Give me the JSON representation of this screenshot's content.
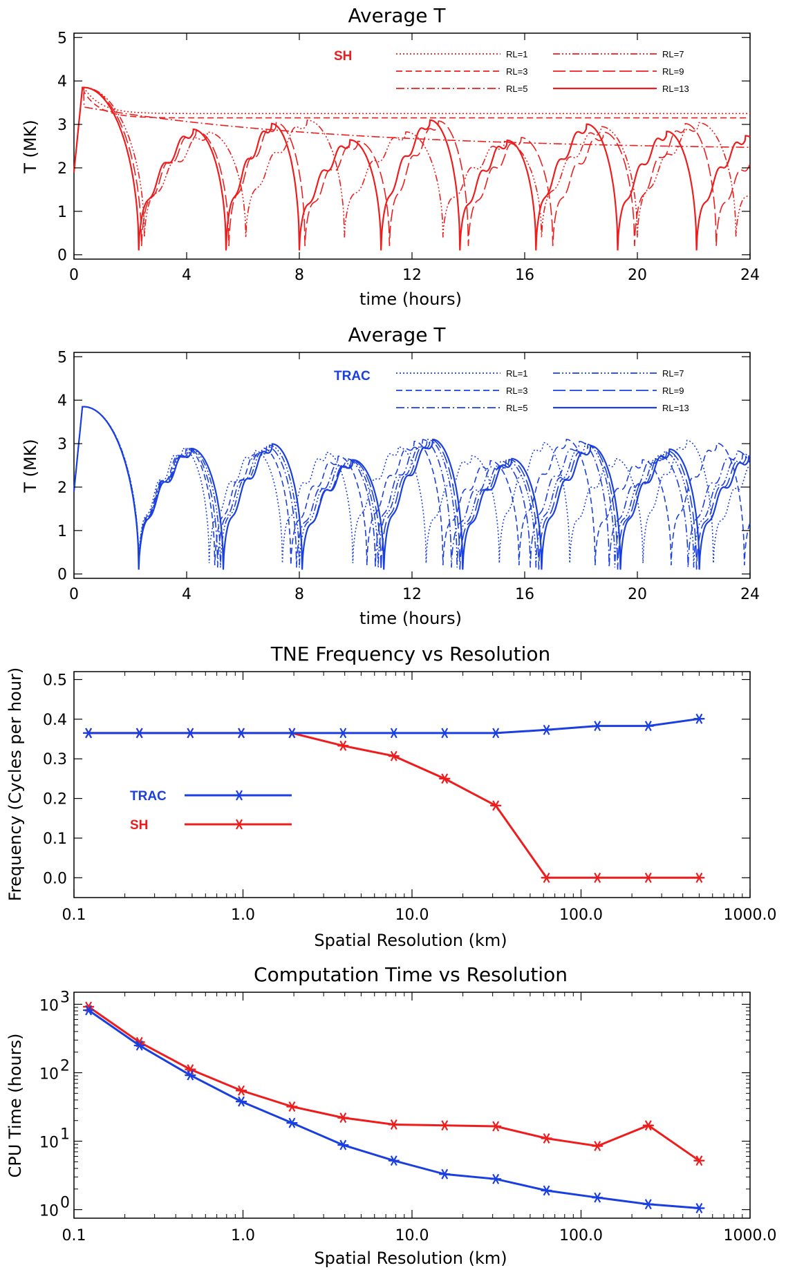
{
  "chart_data": [
    {
      "type": "line",
      "title": "Average T",
      "xlabel": "time (hours)",
      "ylabel": "T (MK)",
      "xlim": [
        0,
        24
      ],
      "ylim": [
        -0.1,
        5.1
      ],
      "xticks": [
        "0",
        "4",
        "8",
        "12",
        "16",
        "20",
        "24"
      ],
      "yticks": [
        "0",
        "1",
        "2",
        "3",
        "4",
        "5"
      ],
      "legend_title": "SH",
      "color": "#ee1c1c",
      "series": [
        {
          "name": "RL=1",
          "style": "dotted",
          "shape": "flat",
          "plateau": 3.25
        },
        {
          "name": "RL=3",
          "style": "dashed",
          "shape": "flat",
          "plateau": 3.15
        },
        {
          "name": "RL=5",
          "style": "dashdot",
          "shape": "decay",
          "start": 3.4,
          "end": 2.4
        },
        {
          "name": "RL=7",
          "style": "dashdotdotdot",
          "shape": "cycles",
          "minima": [
            2.5,
            6.1,
            9.6,
            13.1,
            16.6,
            20.0,
            23.5
          ],
          "min_value": 0.4,
          "period": 3.5
        },
        {
          "name": "RL=9",
          "style": "longdash",
          "shape": "cycles",
          "minima": [
            2.4,
            5.5,
            8.2,
            11.2,
            14.0,
            17.0,
            19.9,
            22.8
          ],
          "min_value": 0.2,
          "period": 2.9
        },
        {
          "name": "RL=13",
          "style": "solid",
          "shape": "cycles",
          "minima": [
            2.3,
            5.4,
            8.0,
            10.9,
            13.7,
            16.4,
            19.3,
            22.1
          ],
          "min_value": 0.1,
          "period": 2.8
        }
      ]
    },
    {
      "type": "line",
      "title": "Average T",
      "xlabel": "time (hours)",
      "ylabel": "T (MK)",
      "xlim": [
        0,
        24
      ],
      "ylim": [
        -0.1,
        5.1
      ],
      "xticks": [
        "0",
        "4",
        "8",
        "12",
        "16",
        "20",
        "24"
      ],
      "yticks": [
        "0",
        "1",
        "2",
        "3",
        "4",
        "5"
      ],
      "legend_title": "TRAC",
      "color": "#1a3fe0",
      "series": [
        {
          "name": "RL=1",
          "style": "dotted",
          "shape": "cycles",
          "minima": [
            2.3,
            4.8,
            7.4,
            9.9,
            12.5,
            15.1,
            17.6,
            20.2,
            22.7
          ],
          "min_value": 0.25,
          "period": 2.55
        },
        {
          "name": "RL=3",
          "style": "dashed",
          "shape": "cycles",
          "minima": [
            2.3,
            5.0,
            7.7,
            10.4,
            13.1,
            15.8,
            18.5,
            21.2,
            23.8
          ],
          "min_value": 0.2,
          "period": 2.7
        },
        {
          "name": "RL=5",
          "style": "dashdot",
          "shape": "cycles",
          "minima": [
            2.3,
            5.1,
            7.9,
            10.7,
            13.4,
            16.2,
            19.0,
            21.8
          ],
          "min_value": 0.15,
          "period": 2.78
        },
        {
          "name": "RL=7",
          "style": "dashdotdotdot",
          "shape": "cycles",
          "minima": [
            2.3,
            5.2,
            8.0,
            10.8,
            13.6,
            16.4,
            19.2,
            22.0
          ],
          "min_value": 0.15,
          "period": 2.8
        },
        {
          "name": "RL=9",
          "style": "longdash",
          "shape": "cycles",
          "minima": [
            2.3,
            5.3,
            8.1,
            10.9,
            13.7,
            16.5,
            19.3,
            22.1
          ],
          "min_value": 0.1,
          "period": 2.82
        },
        {
          "name": "RL=13",
          "style": "solid",
          "shape": "cycles",
          "minima": [
            2.3,
            5.3,
            8.1,
            11.0,
            13.8,
            16.6,
            19.4,
            22.2
          ],
          "min_value": 0.1,
          "period": 2.82
        }
      ]
    },
    {
      "type": "line",
      "title": "TNE Frequency vs Resolution",
      "xlabel": "Spatial Resolution (km)",
      "ylabel": "Frequency (Cycles per hour)",
      "xscale": "log",
      "xlim": [
        0.1,
        1000
      ],
      "ylim": [
        -0.05,
        0.52
      ],
      "xticks": [
        "0.1",
        "1.0",
        "10.0",
        "100.0",
        "1000.0"
      ],
      "yticks": [
        "0.0",
        "0.1",
        "0.2",
        "0.3",
        "0.4",
        "0.5"
      ],
      "x": [
        0.122,
        0.244,
        0.488,
        0.977,
        1.95,
        3.91,
        7.81,
        15.6,
        31.3,
        62.5,
        125,
        250,
        500
      ],
      "series": [
        {
          "name": "TRAC",
          "color": "#1a3fe0",
          "values": [
            0.365,
            0.365,
            0.365,
            0.365,
            0.365,
            0.365,
            0.365,
            0.365,
            0.365,
            0.373,
            0.383,
            0.383,
            0.401
          ]
        },
        {
          "name": "SH",
          "color": "#ee1c1c",
          "values": [
            0.365,
            0.365,
            0.365,
            0.365,
            0.365,
            0.333,
            0.307,
            0.25,
            0.182,
            0.0,
            0.0,
            0.0,
            0.0
          ]
        }
      ]
    },
    {
      "type": "line",
      "title": "Computation Time vs Resolution",
      "xlabel": "Spatial Resolution (km)",
      "ylabel": "CPU Time (hours)",
      "xscale": "log",
      "yscale": "log",
      "xlim": [
        0.1,
        1000
      ],
      "ylim": [
        0.75,
        1500
      ],
      "xticks": [
        "0.1",
        "1.0",
        "10.0",
        "100.0",
        "1000.0"
      ],
      "yticks": [
        {
          "base": "10",
          "exp": "0"
        },
        {
          "base": "10",
          "exp": "1"
        },
        {
          "base": "10",
          "exp": "2"
        },
        {
          "base": "10",
          "exp": "3"
        }
      ],
      "x": [
        0.122,
        0.244,
        0.488,
        0.977,
        1.95,
        3.91,
        7.81,
        15.6,
        31.3,
        62.5,
        125,
        250,
        500
      ],
      "series": [
        {
          "color": "#1a3fe0",
          "values": [
            820,
            250,
            92,
            38,
            18.5,
            8.8,
            5.2,
            3.3,
            2.8,
            1.9,
            1.5,
            1.2,
            1.05
          ]
        },
        {
          "color": "#ee1c1c",
          "values": [
            920,
            280,
            112,
            55,
            32,
            22,
            17.5,
            17,
            16.5,
            11,
            8.5,
            17,
            5.2
          ]
        }
      ]
    }
  ]
}
